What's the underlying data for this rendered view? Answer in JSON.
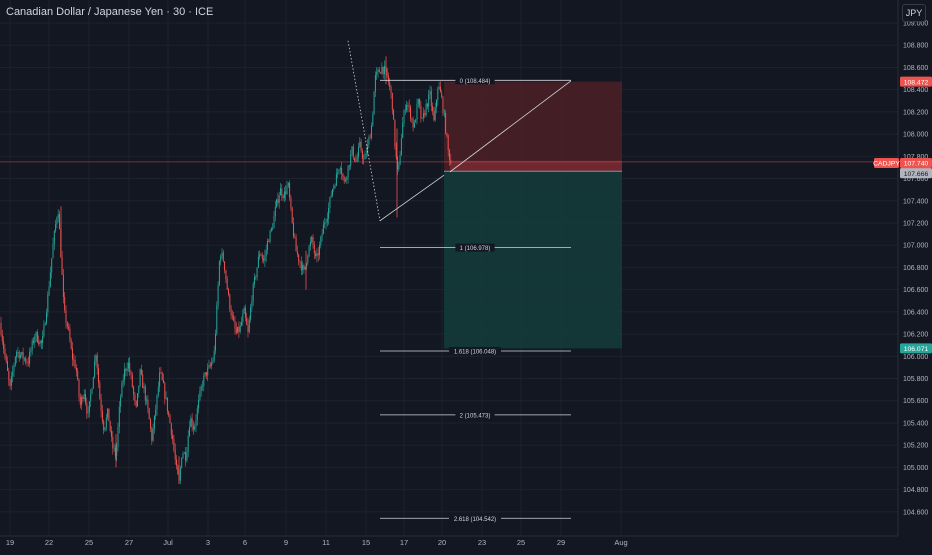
{
  "header": {
    "title": "Canadian Dollar / Japanese Yen · 30 · ICE",
    "currency": "JPY"
  },
  "colors": {
    "background": "#131722",
    "grid": "#1e222d",
    "up": "#26a69a",
    "down": "#ef5350",
    "axis_text": "#b2b5be",
    "stop_zone": "#4a1f26",
    "target_zone": "#143b39",
    "fib_line": "#d1d4dc"
  },
  "price_axis": {
    "ticks": [
      "109.000",
      "108.800",
      "108.600",
      "108.400",
      "108.200",
      "108.000",
      "107.800",
      "107.600",
      "107.400",
      "107.200",
      "107.000",
      "106.800",
      "106.600",
      "106.400",
      "106.200",
      "106.000",
      "105.800",
      "105.600",
      "105.400",
      "105.200",
      "105.000",
      "104.800",
      "104.600"
    ],
    "markers": [
      {
        "label": "108.472",
        "price": 108.472,
        "color": "#ef5350"
      },
      {
        "label": "CADJPY",
        "price": 107.74,
        "color": "#ef5350"
      },
      {
        "label": "107.740",
        "price": 107.74,
        "color": "#ef5350"
      },
      {
        "label": "12:58",
        "price": 107.7,
        "color": "#ef5350"
      },
      {
        "label": "107.666",
        "price": 107.666,
        "color": "#b2b5be"
      },
      {
        "label": "106.071",
        "price": 106.071,
        "color": "#26a69a"
      }
    ]
  },
  "time_axis": {
    "ticks": [
      "19",
      "22",
      "25",
      "27",
      "Jul",
      "3",
      "6",
      "9",
      "11",
      "15",
      "17",
      "20",
      "23",
      "25",
      "29",
      "Aug"
    ]
  },
  "chart_data": {
    "type": "candlestick",
    "title": "Canadian Dollar / Japanese Yen · 30 · ICE",
    "ylim": [
      104.5,
      109.1
    ],
    "last_price": 107.74,
    "current_line": 107.75,
    "position": {
      "entry": 107.666,
      "stop": 108.472,
      "target": 106.071
    },
    "fibonacci": [
      {
        "label": "0 (108.484)",
        "price": 108.484
      },
      {
        "label": "1 (106.978)",
        "price": 106.978
      },
      {
        "label": "1.618 (106.048)",
        "price": 106.048
      },
      {
        "label": "2 (105.473)",
        "price": 105.473
      },
      {
        "label": "2.618 (104.542)",
        "price": 104.542
      }
    ],
    "price_path": [
      [
        0,
        106.3
      ],
      [
        5,
        106.0
      ],
      [
        10,
        105.7
      ],
      [
        16,
        106.05
      ],
      [
        22,
        106.0
      ],
      [
        28,
        105.95
      ],
      [
        35,
        106.2
      ],
      [
        42,
        106.1
      ],
      [
        48,
        106.55
      ],
      [
        53,
        107.0
      ],
      [
        58,
        107.35
      ],
      [
        61,
        106.9
      ],
      [
        64,
        106.4
      ],
      [
        68,
        106.25
      ],
      [
        72,
        106.0
      ],
      [
        76,
        105.9
      ],
      [
        80,
        105.55
      ],
      [
        84,
        105.7
      ],
      [
        88,
        105.45
      ],
      [
        92,
        105.75
      ],
      [
        96,
        106.05
      ],
      [
        100,
        105.6
      ],
      [
        104,
        105.35
      ],
      [
        108,
        105.5
      ],
      [
        112,
        105.2
      ],
      [
        116,
        105.1
      ],
      [
        120,
        105.6
      ],
      [
        124,
        105.85
      ],
      [
        128,
        105.95
      ],
      [
        132,
        105.75
      ],
      [
        136,
        105.5
      ],
      [
        140,
        105.85
      ],
      [
        144,
        105.7
      ],
      [
        148,
        105.5
      ],
      [
        152,
        105.25
      ],
      [
        156,
        105.55
      ],
      [
        160,
        105.85
      ],
      [
        164,
        105.7
      ],
      [
        168,
        105.5
      ],
      [
        172,
        105.3
      ],
      [
        176,
        105.0
      ],
      [
        179,
        104.85
      ],
      [
        182,
        105.15
      ],
      [
        186,
        105.1
      ],
      [
        190,
        105.45
      ],
      [
        194,
        105.35
      ],
      [
        198,
        105.55
      ],
      [
        202,
        105.75
      ],
      [
        206,
        105.85
      ],
      [
        210,
        105.9
      ],
      [
        214,
        106.0
      ],
      [
        217,
        106.45
      ],
      [
        220,
        106.95
      ],
      [
        224,
        106.85
      ],
      [
        228,
        106.55
      ],
      [
        232,
        106.35
      ],
      [
        236,
        106.2
      ],
      [
        240,
        106.25
      ],
      [
        244,
        106.4
      ],
      [
        248,
        106.2
      ],
      [
        252,
        106.55
      ],
      [
        256,
        106.75
      ],
      [
        260,
        106.95
      ],
      [
        264,
        106.85
      ],
      [
        268,
        107.05
      ],
      [
        272,
        107.15
      ],
      [
        276,
        107.35
      ],
      [
        280,
        107.5
      ],
      [
        284,
        107.45
      ],
      [
        288,
        107.55
      ],
      [
        292,
        107.2
      ],
      [
        296,
        106.95
      ],
      [
        300,
        106.85
      ],
      [
        304,
        106.75
      ],
      [
        308,
        106.95
      ],
      [
        312,
        107.05
      ],
      [
        316,
        106.85
      ],
      [
        320,
        107.0
      ],
      [
        324,
        107.2
      ],
      [
        328,
        107.3
      ],
      [
        332,
        107.5
      ],
      [
        336,
        107.6
      ],
      [
        340,
        107.75
      ],
      [
        344,
        107.55
      ],
      [
        348,
        107.7
      ],
      [
        352,
        107.85
      ],
      [
        356,
        107.75
      ],
      [
        360,
        107.9
      ],
      [
        364,
        107.75
      ],
      [
        368,
        107.9
      ],
      [
        372,
        108.1
      ],
      [
        375,
        108.5
      ],
      [
        378,
        108.55
      ],
      [
        382,
        108.6
      ],
      [
        386,
        108.55
      ],
      [
        389,
        108.45
      ],
      [
        392,
        108.3
      ],
      [
        395,
        107.9
      ],
      [
        398,
        107.6
      ],
      [
        402,
        108.05
      ],
      [
        406,
        108.3
      ],
      [
        410,
        108.2
      ],
      [
        414,
        108.05
      ],
      [
        418,
        108.3
      ],
      [
        422,
        108.1
      ],
      [
        426,
        108.25
      ],
      [
        430,
        108.35
      ],
      [
        434,
        108.1
      ],
      [
        438,
        108.45
      ],
      [
        442,
        108.3
      ],
      [
        445,
        108.1
      ],
      [
        448,
        107.85
      ],
      [
        451,
        107.74
      ]
    ]
  }
}
